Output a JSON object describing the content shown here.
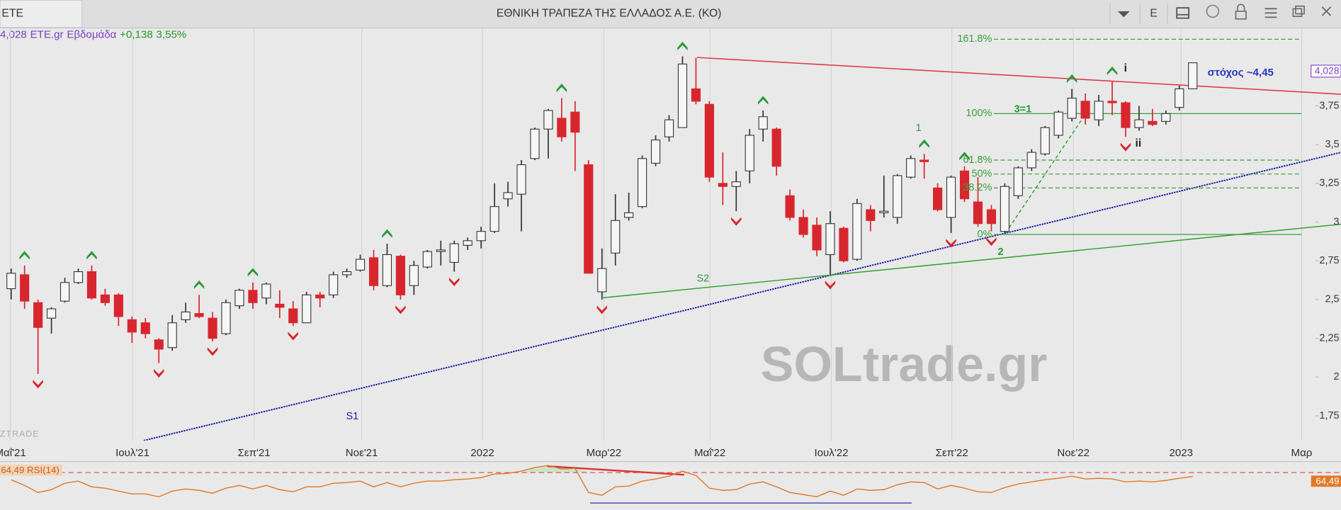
{
  "toolbar": {
    "tab": "ETE",
    "title": "ΕΘΝΙΚΗ ΤΡΑΠΕΖΑ ΤΗΣ ΕΛΛΑΔΟΣ Α.Ε. (ΚΟ)",
    "menu": "E"
  },
  "header": {
    "price": "4,028",
    "symbol": "ETE.gr",
    "period": "Εβδομάδα",
    "change": "+0,138",
    "change_pct": "3,55%"
  },
  "watermarks": [
    "SOLtrade.gr",
    "ZTRADE"
  ],
  "annotations": {
    "s1": "S1",
    "s2": "S2",
    "w1": "1",
    "w2": "2",
    "w3": "3=1",
    "i": "i",
    "ii": "ii",
    "target": "στόχος ~4,45"
  },
  "chart_data": {
    "type": "candlestick",
    "up_color": "#f6f6f6",
    "down_color": "#d8262e",
    "wick_color": "#333333",
    "up_signal_color": "#2a9a3a",
    "down_signal_color": "#d8262e",
    "xlim": [
      -0.83,
      99.04
    ],
    "ylim": [
      1.59,
      4.25
    ],
    "grid": "x",
    "xticks": [
      {
        "value": -0.06,
        "label": "Μαΐ'21"
      },
      {
        "value": 9.04,
        "label": "Ιουλ'21"
      },
      {
        "value": 18.09,
        "label": "Σεπ'21"
      },
      {
        "value": 26.11,
        "label": "Νοε'21"
      },
      {
        "value": 35.1,
        "label": "2022"
      },
      {
        "value": 44.14,
        "label": "Μαρ'22"
      },
      {
        "value": 52.04,
        "label": "Μαΐ'22"
      },
      {
        "value": 61.08,
        "label": "Ιουλ'22"
      },
      {
        "value": 70.06,
        "label": "Σεπ'22"
      },
      {
        "value": 79.11,
        "label": "Νοε'22"
      },
      {
        "value": 87.13,
        "label": "2023"
      },
      {
        "value": 96.11,
        "label": "Μαρ"
      }
    ],
    "yticks": [
      {
        "value": 3.75,
        "label": "3,75"
      },
      {
        "value": 3.5,
        "label": "3,5"
      },
      {
        "value": 3.25,
        "label": "3,25"
      },
      3,
      {
        "value": 2.75,
        "label": "2,75"
      },
      {
        "value": 2.5,
        "label": "2,5"
      },
      {
        "value": 2.25,
        "label": "2,25"
      },
      2,
      {
        "value": 1.75,
        "label": "1,75"
      }
    ],
    "open": [
      2.57,
      2.66,
      2.48,
      2.38,
      2.49,
      2.61,
      2.68,
      2.53,
      2.53,
      2.37,
      2.35,
      2.24,
      2.19,
      2.37,
      2.41,
      2.38,
      2.28,
      2.46,
      2.56,
      2.51,
      2.47,
      2.44,
      2.35,
      2.53,
      2.53,
      2.66,
      2.69,
      2.77,
      2.59,
      2.78,
      2.59,
      2.71,
      2.81,
      2.74,
      2.85,
      2.88,
      2.94,
      3.15,
      3.18,
      3.41,
      3.6,
      3.67,
      3.71,
      3.37,
      2.55,
      2.8,
      3.03,
      3.1,
      3.38,
      3.55,
      3.61,
      3.86,
      3.76,
      3.25,
      3.23,
      3.33,
      3.6,
      3.6,
      3.17,
      3.03,
      2.98,
      2.79,
      2.96,
      2.76,
      3.08,
      3.06,
      3.03,
      3.29,
      3.4,
      3.22,
      3.03,
      3.33,
      3.13,
      3.08,
      2.94,
      3.17,
      3.35,
      3.44,
      3.56,
      3.67,
      3.78,
      3.66,
      3.78,
      3.77,
      3.61,
      3.65,
      3.65,
      3.74,
      3.86
    ],
    "high": [
      2.7,
      2.72,
      2.5,
      2.45,
      2.64,
      2.7,
      2.72,
      2.57,
      2.54,
      2.39,
      2.38,
      2.25,
      2.4,
      2.48,
      2.53,
      2.42,
      2.5,
      2.57,
      2.61,
      2.61,
      2.56,
      2.49,
      2.55,
      2.55,
      2.68,
      2.7,
      2.79,
      2.82,
      2.86,
      2.79,
      2.75,
      2.82,
      2.88,
      2.88,
      2.9,
      2.97,
      3.25,
      3.26,
      3.4,
      3.61,
      3.73,
      3.8,
      3.78,
      3.4,
      2.83,
      3.18,
      3.19,
      3.43,
      3.56,
      3.69,
      4.07,
      4.06,
      3.78,
      3.45,
      3.33,
      3.6,
      3.72,
      3.61,
      3.21,
      3.08,
      3.03,
      3.07,
      2.97,
      3.15,
      3.11,
      3.3,
      3.31,
      3.43,
      3.44,
      3.25,
      3.3,
      3.36,
      3.29,
      3.11,
      3.25,
      3.36,
      3.47,
      3.62,
      3.72,
      3.86,
      3.83,
      3.82,
      3.91,
      3.78,
      3.75,
      3.73,
      3.72,
      3.88,
      4.03
    ],
    "low": [
      2.5,
      2.44,
      2.02,
      2.28,
      2.48,
      2.6,
      2.5,
      2.46,
      2.33,
      2.22,
      2.25,
      2.09,
      2.17,
      2.35,
      2.38,
      2.23,
      2.27,
      2.44,
      2.44,
      2.47,
      2.38,
      2.33,
      2.35,
      2.45,
      2.51,
      2.64,
      2.68,
      2.56,
      2.58,
      2.5,
      2.53,
      2.7,
      2.72,
      2.68,
      2.82,
      2.83,
      2.93,
      3.1,
      2.94,
      3.4,
      3.41,
      3.52,
      3.33,
      2.67,
      2.5,
      2.72,
      3.01,
      3.09,
      3.36,
      3.52,
      3.61,
      3.76,
      3.26,
      3.11,
      3.07,
      3.25,
      3.52,
      3.3,
      3.01,
      2.9,
      2.78,
      2.66,
      2.74,
      2.75,
      2.94,
      3.03,
      2.99,
      3.28,
      3.28,
      3.07,
      2.93,
      3.13,
      2.97,
      2.94,
      2.93,
      3.15,
      3.33,
      3.43,
      3.54,
      3.65,
      3.63,
      3.62,
      3.69,
      3.55,
      3.59,
      3.62,
      3.63,
      3.72,
      3.86
    ],
    "close": [
      2.67,
      2.49,
      2.32,
      2.44,
      2.61,
      2.68,
      2.51,
      2.48,
      2.39,
      2.29,
      2.28,
      2.18,
      2.35,
      2.42,
      2.39,
      2.25,
      2.48,
      2.56,
      2.48,
      2.6,
      2.45,
      2.35,
      2.53,
      2.51,
      2.66,
      2.68,
      2.76,
      2.59,
      2.79,
      2.53,
      2.72,
      2.81,
      2.82,
      2.86,
      2.88,
      2.94,
      3.1,
      3.19,
      3.37,
      3.6,
      3.72,
      3.55,
      3.58,
      2.67,
      2.7,
      3.01,
      3.06,
      3.41,
      3.53,
      3.66,
      4.02,
      3.78,
      3.29,
      3.23,
      3.26,
      3.56,
      3.68,
      3.36,
      3.03,
      2.92,
      2.82,
      2.99,
      2.75,
      3.12,
      3.01,
      3.07,
      3.3,
      3.41,
      3.39,
      3.08,
      3.29,
      3.15,
      2.99,
      2.99,
      3.23,
      3.35,
      3.45,
      3.61,
      3.71,
      3.8,
      3.67,
      3.78,
      3.77,
      3.61,
      3.66,
      3.63,
      3.7,
      3.86,
      4.028
    ],
    "signals_up": [
      1,
      6,
      14,
      18,
      28,
      41,
      50,
      56,
      68,
      71,
      79,
      82
    ],
    "signals_down": [
      2,
      11,
      15,
      21,
      29,
      33,
      44,
      54,
      61,
      70,
      73,
      83
    ],
    "fib_levels": [
      {
        "label": "161.8%",
        "value": 4.18,
        "style": "dashed"
      },
      {
        "label": "100%",
        "value": 3.7,
        "style": "solid"
      },
      {
        "label": "61.8%",
        "value": 3.4,
        "style": "dashed"
      },
      {
        "label": "50%",
        "value": 3.31,
        "style": "dashed"
      },
      {
        "label": "38.2%",
        "value": 3.22,
        "style": "dashed"
      },
      {
        "label": "0%",
        "value": 2.92,
        "style": "solid"
      }
    ],
    "fib_color": "#3aa03a",
    "rsi": {
      "name": "RSI(14)",
      "color": "#e07a2a",
      "level_color": "#e04545",
      "ylim": [
        20,
        85
      ],
      "level": 70,
      "last_label": "64,49",
      "values": [
        60,
        52,
        42,
        46,
        55,
        58,
        50,
        48,
        44,
        40,
        40,
        36,
        44,
        47,
        45,
        41,
        48,
        52,
        47,
        52,
        46,
        43,
        50,
        50,
        55,
        56,
        58,
        50,
        56,
        50,
        55,
        58,
        58,
        60,
        61,
        63,
        68,
        69,
        72,
        77,
        80,
        75,
        76,
        42,
        38,
        50,
        51,
        58,
        61,
        65,
        72,
        66,
        48,
        45,
        46,
        54,
        57,
        50,
        42,
        39,
        36,
        44,
        38,
        47,
        45,
        46,
        53,
        57,
        56,
        47,
        52,
        48,
        43,
        42,
        49,
        54,
        57,
        60,
        62,
        65,
        61,
        62,
        61,
        57,
        58,
        57,
        59,
        62,
        64.49
      ]
    }
  }
}
